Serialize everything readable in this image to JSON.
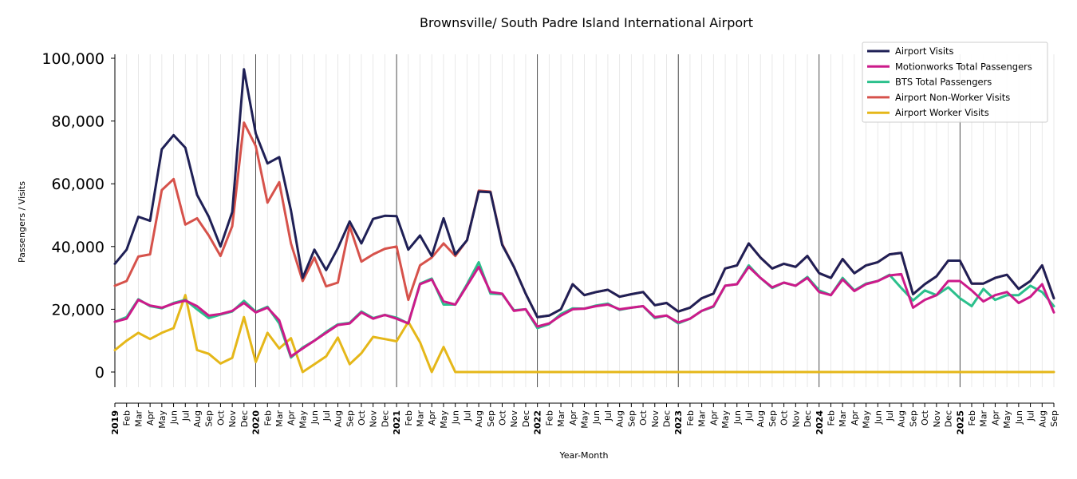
{
  "chart_data": {
    "type": "line",
    "title": "Brownsville/ South Padre Island International Airport",
    "xlabel": "Year-Month",
    "ylabel": "Passengers / Visits",
    "ylim": [
      -5000,
      101000
    ],
    "yticks": [
      0,
      20000,
      40000,
      60000,
      80000,
      100000
    ],
    "ytick_labels": [
      "0",
      "20,000",
      "40,000",
      "60,000",
      "80,000",
      "100,000"
    ],
    "grid": "vertical monthly gridlines, dark vertical lines at each January",
    "legend_position": "top-right",
    "x": [
      "2019",
      "Feb",
      "Mar",
      "Apr",
      "May",
      "Jun",
      "Jul",
      "Aug",
      "Sep",
      "Oct",
      "Nov",
      "Dec",
      "2020",
      "Feb",
      "Mar",
      "Apr",
      "May",
      "Jun",
      "Jul",
      "Aug",
      "Sep",
      "Oct",
      "Nov",
      "Dec",
      "2021",
      "Feb",
      "Mar",
      "Apr",
      "May",
      "Jun",
      "Jul",
      "Aug",
      "Sep",
      "Oct",
      "Nov",
      "Dec",
      "2022",
      "Feb",
      "Mar",
      "Apr",
      "May",
      "Jun",
      "Jul",
      "Aug",
      "Sep",
      "Oct",
      "Nov",
      "Dec",
      "2023",
      "Feb",
      "Mar",
      "Apr",
      "May",
      "Jun",
      "Jul",
      "Aug",
      "Sep",
      "Oct",
      "Nov",
      "Dec",
      "2024",
      "Feb",
      "Mar",
      "Apr",
      "May",
      "Jun",
      "Jul",
      "Aug",
      "Sep",
      "Oct",
      "Nov",
      "Dec",
      "2025",
      "Feb",
      "Mar",
      "Apr",
      "May",
      "Jun",
      "Jul",
      "Aug",
      "Sep"
    ],
    "series": [
      {
        "name": "Airport Visits",
        "color": "#1f2056",
        "values": [
          34500,
          39000,
          49500,
          48200,
          71000,
          75500,
          71500,
          56500,
          49500,
          40000,
          51000,
          96500,
          76000,
          66500,
          68500,
          51500,
          30000,
          39000,
          32500,
          39500,
          48000,
          41000,
          48800,
          49800,
          49700,
          39000,
          43500,
          37000,
          49000,
          37500,
          42000,
          57500,
          57300,
          40500,
          33500,
          25000,
          17500,
          18000,
          20000,
          28000,
          24500,
          25500,
          26200,
          24000,
          24800,
          25500,
          21300,
          22000,
          19300,
          20500,
          23500,
          25000,
          33000,
          34000,
          41000,
          36500,
          33000,
          34500,
          33500,
          37000,
          31500,
          30000,
          36000,
          31500,
          34000,
          35000,
          37500,
          38000,
          24800,
          28000,
          30500,
          35500,
          35500,
          28200,
          28200,
          30000,
          31000,
          26500,
          29000,
          34000,
          23500
        ]
      },
      {
        "name": "Motionworks Total Passengers",
        "color": "#cc1a8a",
        "values": [
          16000,
          17000,
          23000,
          21200,
          20500,
          21800,
          22800,
          21000,
          18000,
          18500,
          19500,
          22000,
          19000,
          20500,
          16500,
          5000,
          7500,
          10000,
          12500,
          15000,
          15500,
          19000,
          17000,
          18200,
          17000,
          15500,
          28000,
          29500,
          22500,
          21500,
          27500,
          33500,
          25500,
          25000,
          19500,
          20000,
          14500,
          15500,
          18000,
          20000,
          20200,
          21000,
          21500,
          20000,
          20500,
          21000,
          17500,
          18000,
          15800,
          17000,
          19500,
          21000,
          27500,
          28000,
          33500,
          30000,
          27000,
          28500,
          27500,
          30000,
          25500,
          24500,
          29500,
          25800,
          28000,
          29000,
          30800,
          31200,
          20500,
          23000,
          24500,
          29000,
          29000,
          26000,
          22500,
          24500,
          25500,
          22000,
          24000,
          28000,
          19000
        ]
      },
      {
        "name": "BTS Total Passengers",
        "color": "#2bc08c",
        "values": [
          16000,
          17500,
          23200,
          21000,
          20300,
          22000,
          23000,
          20000,
          17200,
          18300,
          19300,
          22700,
          19200,
          20800,
          15500,
          4600,
          7800,
          10000,
          12800,
          15200,
          15700,
          19300,
          17200,
          18200,
          17300,
          15500,
          28200,
          29800,
          21500,
          21500,
          28000,
          35000,
          25000,
          24800,
          19700,
          20000,
          14000,
          15300,
          18500,
          20300,
          20200,
          21200,
          21800,
          19800,
          20500,
          21000,
          17200,
          18000,
          15500,
          17000,
          19500,
          20800,
          27500,
          28000,
          34000,
          30000,
          26800,
          28500,
          27500,
          30300,
          26000,
          24500,
          30000,
          26000,
          28200,
          29000,
          31000,
          26800,
          22800,
          26000,
          24500,
          27000,
          23500,
          21000,
          26500,
          23000,
          24500,
          24500,
          27500,
          25500,
          21000
        ]
      },
      {
        "name": "Airport Non-Worker Visits",
        "color": "#d6524b",
        "values": [
          27500,
          29000,
          36800,
          37500,
          58000,
          61500,
          47000,
          49000,
          43500,
          37000,
          46500,
          79500,
          72000,
          54000,
          60500,
          41000,
          29000,
          36500,
          27300,
          28500,
          46500,
          35200,
          37500,
          39300,
          40000,
          23000,
          34000,
          36500,
          41000,
          37000,
          42000,
          57800,
          57500,
          40800,
          33500,
          25000,
          17500,
          18000,
          20000,
          28000,
          24500,
          25500,
          26200,
          24000,
          24800,
          25500,
          21300,
          22000,
          19300,
          20500,
          23500,
          25000,
          33000,
          34000,
          41000,
          36500,
          33000,
          34500,
          33500,
          37000,
          31500,
          30000,
          36000,
          31500,
          34000,
          35000,
          37500,
          38000,
          24800,
          28000,
          30500,
          35500,
          35500,
          28200,
          28200,
          30000,
          31000,
          26500,
          29000,
          34000,
          23500
        ]
      },
      {
        "name": "Airport Worker Visits",
        "color": "#e5b719",
        "values": [
          7000,
          10000,
          12500,
          10500,
          12500,
          14000,
          24500,
          7000,
          5800,
          2700,
          4500,
          17500,
          3200,
          12500,
          7500,
          10800,
          0,
          2500,
          5000,
          11000,
          2500,
          6000,
          11200,
          10500,
          9800,
          16000,
          9500,
          0,
          8000,
          0,
          0,
          0,
          0,
          0,
          0,
          0,
          0,
          0,
          0,
          0,
          0,
          0,
          0,
          0,
          0,
          0,
          0,
          0,
          0,
          0,
          0,
          0,
          0,
          0,
          0,
          0,
          0,
          0,
          0,
          0,
          0,
          0,
          0,
          0,
          0,
          0,
          0,
          0,
          0,
          0,
          0,
          0,
          0,
          0,
          0,
          0,
          0,
          0,
          0,
          0,
          0
        ]
      }
    ]
  }
}
